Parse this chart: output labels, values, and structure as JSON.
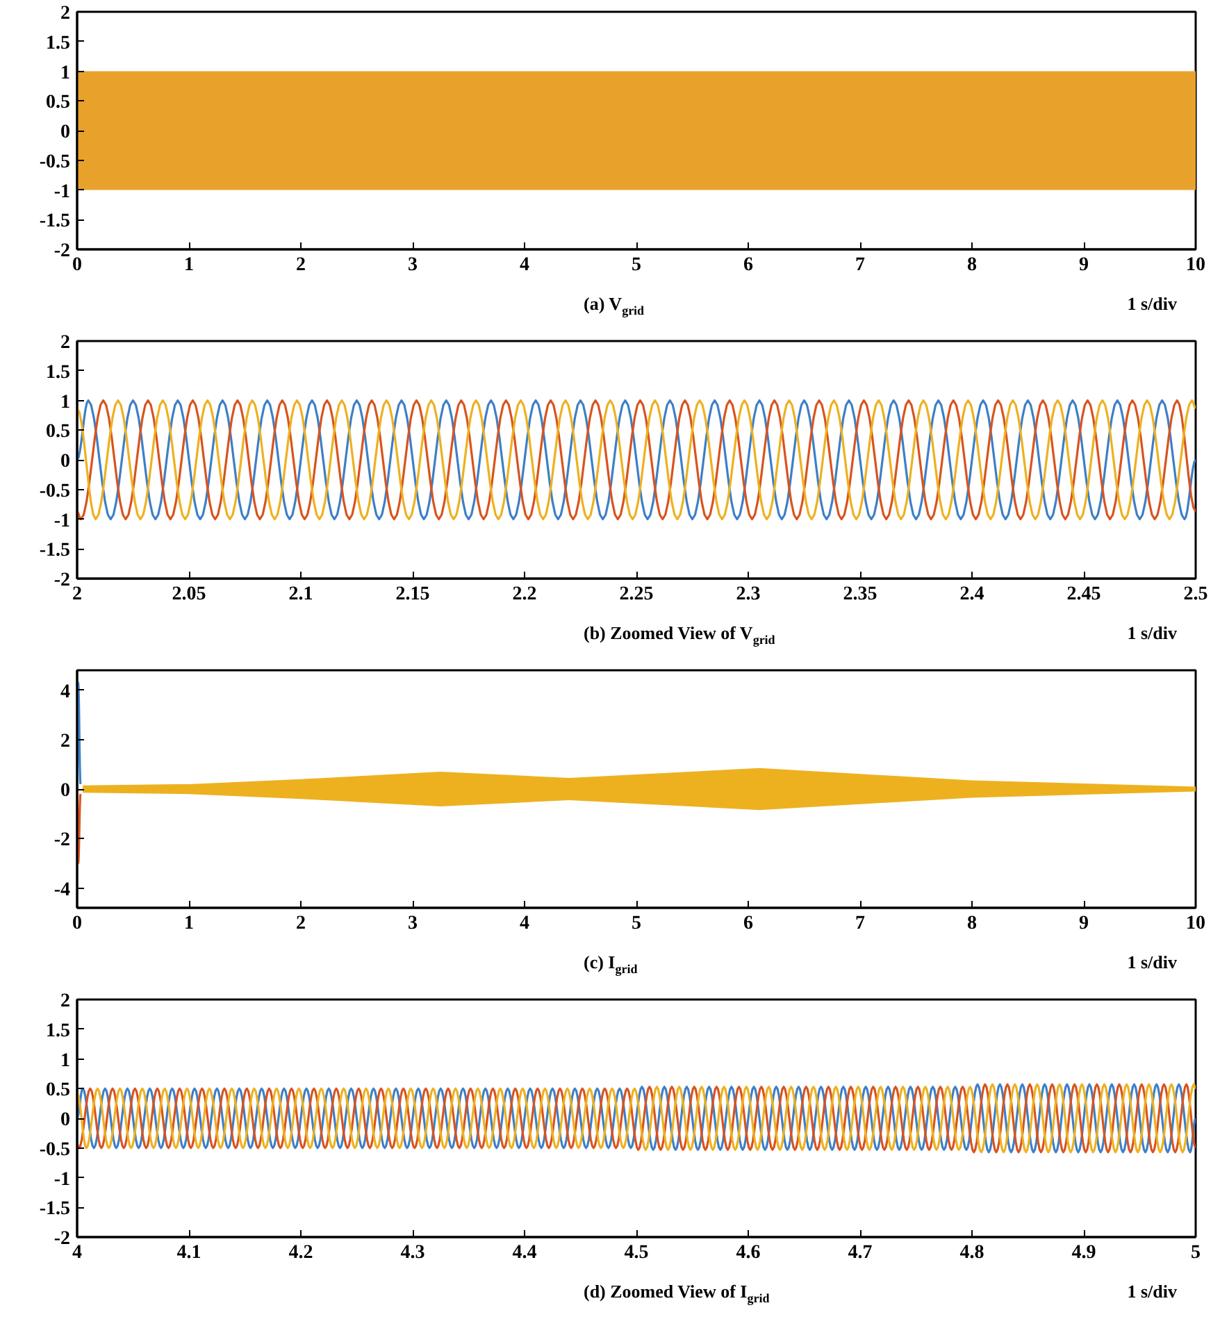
{
  "chart_data": [
    {
      "type": "line",
      "xlabel": "(a) V$_{grid}$",
      "annotations": [
        "1 s/div"
      ],
      "xlim": [
        0,
        10
      ],
      "ylim": [
        -2,
        2
      ],
      "xticks": [
        0,
        1,
        2,
        3,
        4,
        5,
        6,
        7,
        8,
        9,
        10
      ],
      "yticks": [
        -2,
        -1.5,
        -1,
        -0.5,
        0,
        0.5,
        1,
        1.5,
        2
      ],
      "series": [
        {
          "color": "#e8a22c",
          "x": [
            0,
            10
          ],
          "values": [
            null,
            null
          ],
          "lower": [
            -1,
            -1
          ],
          "upper": [
            1,
            1
          ]
        }
      ]
    },
    {
      "type": "line",
      "xlabel": "(b) Zoomed View of V$_{grid}$",
      "annotations": [
        "1 s/div"
      ],
      "xlim": [
        2,
        2.5
      ],
      "ylim": [
        -2,
        2
      ],
      "xticks": [
        2,
        2.05,
        2.1,
        2.15,
        2.2,
        2.25,
        2.3,
        2.35,
        2.4,
        2.45,
        2.5
      ],
      "yticks": [
        -2,
        -1.5,
        -1,
        -0.5,
        0,
        0.5,
        1,
        1.5,
        2
      ],
      "series": [
        {
          "color": "#3d7fc6",
          "x": [
            2,
            2.005,
            2.015,
            2.025,
            2.035,
            2.045,
            2.055,
            2.065,
            2.075,
            2.085,
            2.095,
            2.105,
            2.115,
            2.125,
            2.135,
            2.145,
            2.155,
            2.165,
            2.175,
            2.185,
            2.195,
            2.205,
            2.215,
            2.225,
            2.235,
            2.245,
            2.255,
            2.265,
            2.275,
            2.285,
            2.295,
            2.305,
            2.315,
            2.325,
            2.335,
            2.345,
            2.355,
            2.365,
            2.375,
            2.385,
            2.395,
            2.405,
            2.415,
            2.425,
            2.435,
            2.445,
            2.455,
            2.465,
            2.475,
            2.485,
            2.495,
            2.5
          ],
          "values": [
            0,
            1,
            -1,
            1,
            -1,
            1,
            -1,
            1,
            -1,
            1,
            -1,
            1,
            -1,
            1,
            -1,
            1,
            -1,
            1,
            -1,
            1,
            -1,
            1,
            -1,
            1,
            -1,
            1,
            -1,
            1,
            -1,
            1,
            -1,
            1,
            -1,
            1,
            -1,
            1,
            -1,
            1,
            -1,
            1,
            -1,
            1,
            -1,
            1,
            -1,
            1,
            -1,
            1,
            -1,
            1,
            -1,
            0
          ]
        },
        {
          "color": "#d9531e",
          "x": [
            2,
            2.0017,
            2.0117,
            2.0217,
            2.0317,
            2.0417,
            2.0517,
            2.0617,
            2.0717,
            2.0817,
            2.0917,
            2.1017,
            2.1117,
            2.1217,
            2.1317,
            2.1417,
            2.1517,
            2.1617,
            2.1717,
            2.1817,
            2.1917,
            2.2017,
            2.2117,
            2.2217,
            2.2317,
            2.2417,
            2.2517,
            2.2617,
            2.2717,
            2.2817,
            2.2917,
            2.3017,
            2.3117,
            2.3217,
            2.3317,
            2.3417,
            2.3517,
            2.3617,
            2.3717,
            2.3817,
            2.3917,
            2.4017,
            2.4117,
            2.4217,
            2.4317,
            2.4417,
            2.4517,
            2.4617,
            2.4717,
            2.4817,
            2.4917,
            2.5
          ],
          "values": [
            -0.87,
            -1,
            1,
            -1,
            1,
            -1,
            1,
            -1,
            1,
            -1,
            1,
            -1,
            1,
            -1,
            1,
            -1,
            1,
            -1,
            1,
            -1,
            1,
            -1,
            1,
            -1,
            1,
            -1,
            1,
            -1,
            1,
            -1,
            1,
            -1,
            1,
            -1,
            1,
            -1,
            1,
            -1,
            1,
            -1,
            1,
            -1,
            1,
            -1,
            1,
            -1,
            1,
            -1,
            1,
            -1,
            1,
            -0.87
          ]
        },
        {
          "color": "#edb120",
          "x": [
            2,
            2.0083,
            2.0183,
            2.0283,
            2.0383,
            2.0483,
            2.0583,
            2.0683,
            2.0783,
            2.0883,
            2.0983,
            2.1083,
            2.1183,
            2.1283,
            2.1383,
            2.1483,
            2.1583,
            2.1683,
            2.1783,
            2.1883,
            2.1983,
            2.2083,
            2.2183,
            2.2283,
            2.2383,
            2.2483,
            2.2583,
            2.2683,
            2.2783,
            2.2883,
            2.2983,
            2.3083,
            2.3183,
            2.3283,
            2.3383,
            2.3483,
            2.3583,
            2.3683,
            2.3783,
            2.3883,
            2.3983,
            2.4083,
            2.4183,
            2.4283,
            2.4383,
            2.4483,
            2.4583,
            2.4683,
            2.4783,
            2.4883,
            2.4983,
            2.5
          ],
          "values": [
            0.87,
            -1,
            1,
            -1,
            1,
            -1,
            1,
            -1,
            1,
            -1,
            1,
            -1,
            1,
            -1,
            1,
            -1,
            1,
            -1,
            1,
            -1,
            1,
            -1,
            1,
            -1,
            1,
            -1,
            1,
            -1,
            1,
            -1,
            1,
            -1,
            1,
            -1,
            1,
            -1,
            1,
            -1,
            1,
            -1,
            1,
            -1,
            1,
            -1,
            1,
            -1,
            1,
            -1,
            1,
            -1,
            1,
            0.87
          ]
        }
      ]
    },
    {
      "type": "line",
      "xlabel": "(c) I$_{grid}$",
      "annotations": [
        "1 s/div"
      ],
      "xlim": [
        0,
        10
      ],
      "ylim": [
        -4.8,
        4.8
      ],
      "xticks": [
        0,
        1,
        2,
        3,
        4,
        5,
        6,
        7,
        8,
        9,
        10
      ],
      "yticks": [
        -4,
        -2,
        0,
        2,
        4
      ],
      "series": [
        {
          "color": "#edb120",
          "x": [
            0.05,
            1,
            2,
            3.25,
            4.4,
            6.1,
            8,
            10
          ],
          "values": [
            null,
            null,
            null,
            null,
            null,
            null,
            null,
            null
          ],
          "lower": [
            -0.15,
            -0.2,
            -0.4,
            -0.7,
            -0.45,
            -0.85,
            -0.35,
            -0.1
          ],
          "upper": [
            0.15,
            0.2,
            0.4,
            0.7,
            0.45,
            0.85,
            0.35,
            0.1
          ]
        },
        {
          "color": "#3d7fc6",
          "x": [
            0,
            0.01,
            0.03
          ],
          "values": [
            0,
            4.3,
            0.2
          ]
        },
        {
          "color": "#d9531e",
          "x": [
            0,
            0.01,
            0.03
          ],
          "values": [
            0,
            -3,
            -0.2
          ]
        }
      ]
    },
    {
      "type": "line",
      "xlabel": "(d) Zoomed View of I$_{grid}$",
      "annotations": [
        "1 s/div"
      ],
      "xlim": [
        4,
        5
      ],
      "ylim": [
        -2,
        2
      ],
      "xticks": [
        4,
        4.1,
        4.2,
        4.3,
        4.4,
        4.5,
        4.6,
        4.7,
        4.8,
        4.9,
        5
      ],
      "yticks": [
        -2,
        -1.5,
        -1,
        -0.5,
        0,
        0.5,
        1,
        1.5,
        2
      ],
      "series": [
        {
          "color": "#3d7fc6",
          "x": [
            4,
            4.005,
            4.015,
            4.025,
            4.035,
            4.045,
            4.055,
            4.065,
            4.075,
            4.085,
            4.095,
            4.105,
            4.115,
            4.125,
            4.135,
            4.145,
            4.155,
            4.165,
            4.175,
            4.185,
            4.195,
            4.205,
            4.215,
            4.225,
            4.235,
            4.245,
            4.255,
            4.265,
            4.275,
            4.285,
            4.295,
            4.305,
            4.315,
            4.325,
            4.335,
            4.345,
            4.355,
            4.365,
            4.375,
            4.385,
            4.395,
            4.405,
            4.415,
            4.425,
            4.435,
            4.445,
            4.455,
            4.465,
            4.475,
            4.485,
            4.495,
            4.505,
            4.515,
            4.525,
            4.535,
            4.545,
            4.555,
            4.565,
            4.575,
            4.585,
            4.595,
            4.605,
            4.615,
            4.625,
            4.635,
            4.645,
            4.655,
            4.665,
            4.675,
            4.685,
            4.695,
            4.705,
            4.715,
            4.725,
            4.735,
            4.745,
            4.755,
            4.765,
            4.775,
            4.785,
            4.795,
            4.805,
            4.815,
            4.825,
            4.835,
            4.845,
            4.855,
            4.865,
            4.875,
            4.885,
            4.895,
            4.905,
            4.915,
            4.925,
            4.935,
            4.945,
            4.955,
            4.965,
            4.975,
            4.985,
            4.995,
            5
          ],
          "values": [
            0,
            0.5,
            -0.5,
            0.5,
            -0.5,
            0.5,
            -0.5,
            0.5,
            -0.5,
            0.5,
            -0.5,
            0.5,
            -0.5,
            0.5,
            -0.5,
            0.5,
            -0.5,
            0.5,
            -0.5,
            0.5,
            -0.5,
            0.5,
            -0.5,
            0.5,
            -0.5,
            0.5,
            -0.5,
            0.5,
            -0.5,
            0.5,
            -0.5,
            0.5,
            -0.5,
            0.5,
            -0.5,
            0.5,
            -0.5,
            0.5,
            -0.5,
            0.5,
            -0.5,
            0.5,
            -0.5,
            0.5,
            -0.5,
            0.5,
            -0.5,
            0.5,
            -0.5,
            0.5,
            -0.5,
            0.53,
            -0.53,
            0.53,
            -0.53,
            0.53,
            -0.53,
            0.53,
            -0.53,
            0.53,
            -0.53,
            0.53,
            -0.53,
            0.53,
            -0.53,
            0.53,
            -0.53,
            0.53,
            -0.53,
            0.53,
            -0.53,
            0.53,
            -0.53,
            0.53,
            -0.53,
            0.53,
            -0.53,
            0.53,
            -0.53,
            0.53,
            -0.53,
            0.57,
            -0.57,
            0.57,
            -0.57,
            0.57,
            -0.57,
            0.57,
            -0.57,
            0.57,
            -0.57,
            0.57,
            -0.57,
            0.57,
            -0.57,
            0.57,
            -0.57,
            0.57,
            -0.57,
            0.57,
            -0.57,
            0
          ]
        },
        {
          "color": "#d9531e",
          "x": [
            4,
            4.0017,
            4.0117,
            4.0217,
            4.0317,
            4.0417,
            4.0517,
            4.0617,
            4.0717,
            4.0817,
            4.0917,
            4.1017,
            4.1117,
            4.1217,
            4.1317,
            4.1417,
            4.1517,
            4.1617,
            4.1717,
            4.1817,
            4.1917,
            4.2017,
            4.2117,
            4.2217,
            4.2317,
            4.2417,
            4.2517,
            4.2617,
            4.2717,
            4.2817,
            4.2917,
            4.3017,
            4.3117,
            4.3217,
            4.3317,
            4.3417,
            4.3517,
            4.3617,
            4.3717,
            4.3817,
            4.3917,
            4.4017,
            4.4117,
            4.4217,
            4.4317,
            4.4417,
            4.4517,
            4.4617,
            4.4717,
            4.4817,
            4.4917,
            4.5017,
            4.5117,
            4.5217,
            4.5317,
            4.5417,
            4.5517,
            4.5617,
            4.5717,
            4.5817,
            4.5917,
            4.6017,
            4.6117,
            4.6217,
            4.6317,
            4.6417,
            4.6517,
            4.6617,
            4.6717,
            4.6817,
            4.6917,
            4.7017,
            4.7117,
            4.7217,
            4.7317,
            4.7417,
            4.7517,
            4.7617,
            4.7717,
            4.7817,
            4.7917,
            4.8017,
            4.8117,
            4.8217,
            4.8317,
            4.8417,
            4.8517,
            4.8617,
            4.8717,
            4.8817,
            4.8917,
            4.9017,
            4.9117,
            4.9217,
            4.9317,
            4.9417,
            4.9517,
            4.9617,
            4.9717,
            4.9817,
            4.9917,
            5
          ],
          "values": [
            -0.43,
            -0.5,
            0.5,
            -0.5,
            0.5,
            -0.5,
            0.5,
            -0.5,
            0.5,
            -0.5,
            0.5,
            -0.5,
            0.5,
            -0.5,
            0.5,
            -0.5,
            0.5,
            -0.5,
            0.5,
            -0.5,
            0.5,
            -0.5,
            0.5,
            -0.5,
            0.5,
            -0.5,
            0.5,
            -0.5,
            0.5,
            -0.5,
            0.5,
            -0.5,
            0.5,
            -0.5,
            0.5,
            -0.5,
            0.5,
            -0.5,
            0.5,
            -0.5,
            0.5,
            -0.5,
            0.5,
            -0.5,
            0.5,
            -0.5,
            0.5,
            -0.5,
            0.5,
            -0.5,
            0.5,
            -0.53,
            0.53,
            -0.53,
            0.53,
            -0.53,
            0.53,
            -0.53,
            0.53,
            -0.53,
            0.53,
            -0.53,
            0.53,
            -0.53,
            0.53,
            -0.53,
            0.53,
            -0.53,
            0.53,
            -0.53,
            0.53,
            -0.53,
            0.53,
            -0.53,
            0.53,
            -0.53,
            0.53,
            -0.53,
            0.53,
            -0.53,
            0.53,
            -0.57,
            0.57,
            -0.57,
            0.57,
            -0.57,
            0.57,
            -0.57,
            0.57,
            -0.57,
            0.57,
            -0.57,
            0.57,
            -0.57,
            0.57,
            -0.57,
            0.57,
            -0.57,
            0.57,
            -0.57,
            0.57,
            -0.5
          ]
        },
        {
          "color": "#edb120",
          "x": [
            4,
            4.0083,
            4.0183,
            4.0283,
            4.0383,
            4.0483,
            4.0583,
            4.0683,
            4.0783,
            4.0883,
            4.0983,
            4.1083,
            4.1183,
            4.1283,
            4.1383,
            4.1483,
            4.1583,
            4.1683,
            4.1783,
            4.1883,
            4.1983,
            4.2083,
            4.2183,
            4.2283,
            4.2383,
            4.2483,
            4.2583,
            4.2683,
            4.2783,
            4.2883,
            4.2983,
            4.3083,
            4.3183,
            4.3283,
            4.3383,
            4.3483,
            4.3583,
            4.3683,
            4.3783,
            4.3883,
            4.3983,
            4.4083,
            4.4183,
            4.4283,
            4.4383,
            4.4483,
            4.4583,
            4.4683,
            4.4783,
            4.4883,
            4.4983,
            4.5083,
            4.5183,
            4.5283,
            4.5383,
            4.5483,
            4.5583,
            4.5683,
            4.5783,
            4.5883,
            4.5983,
            4.6083,
            4.6183,
            4.6283,
            4.6383,
            4.6483,
            4.6583,
            4.6683,
            4.6783,
            4.6883,
            4.6983,
            4.7083,
            4.7183,
            4.7283,
            4.7383,
            4.7483,
            4.7583,
            4.7683,
            4.7783,
            4.7883,
            4.7983,
            4.8083,
            4.8183,
            4.8283,
            4.8383,
            4.8483,
            4.8583,
            4.8683,
            4.8783,
            4.8883,
            4.8983,
            4.9083,
            4.9183,
            4.9283,
            4.9383,
            4.9483,
            4.9583,
            4.9683,
            4.9783,
            4.9883,
            4.9983,
            5
          ],
          "values": [
            0.43,
            -0.5,
            0.5,
            -0.5,
            0.5,
            -0.5,
            0.5,
            -0.5,
            0.5,
            -0.5,
            0.5,
            -0.5,
            0.5,
            -0.5,
            0.5,
            -0.5,
            0.5,
            -0.5,
            0.5,
            -0.5,
            0.5,
            -0.5,
            0.5,
            -0.5,
            0.5,
            -0.5,
            0.5,
            -0.5,
            0.5,
            -0.5,
            0.5,
            -0.5,
            0.5,
            -0.5,
            0.5,
            -0.5,
            0.5,
            -0.5,
            0.5,
            -0.5,
            0.5,
            -0.5,
            0.5,
            -0.5,
            0.5,
            -0.5,
            0.5,
            -0.5,
            0.5,
            -0.5,
            0.5,
            -0.53,
            0.53,
            -0.53,
            0.53,
            -0.53,
            0.53,
            -0.53,
            0.53,
            -0.53,
            0.53,
            -0.53,
            0.53,
            -0.53,
            0.53,
            -0.53,
            0.53,
            -0.53,
            0.53,
            -0.53,
            0.53,
            -0.53,
            0.53,
            -0.53,
            0.53,
            -0.53,
            0.53,
            -0.53,
            0.53,
            -0.53,
            0.53,
            -0.57,
            0.57,
            -0.57,
            0.57,
            -0.57,
            0.57,
            -0.57,
            0.57,
            -0.57,
            0.57,
            -0.57,
            0.57,
            -0.57,
            0.57,
            -0.57,
            0.57,
            -0.57,
            0.57,
            -0.57,
            0.57,
            0.5
          ]
        }
      ]
    }
  ]
}
